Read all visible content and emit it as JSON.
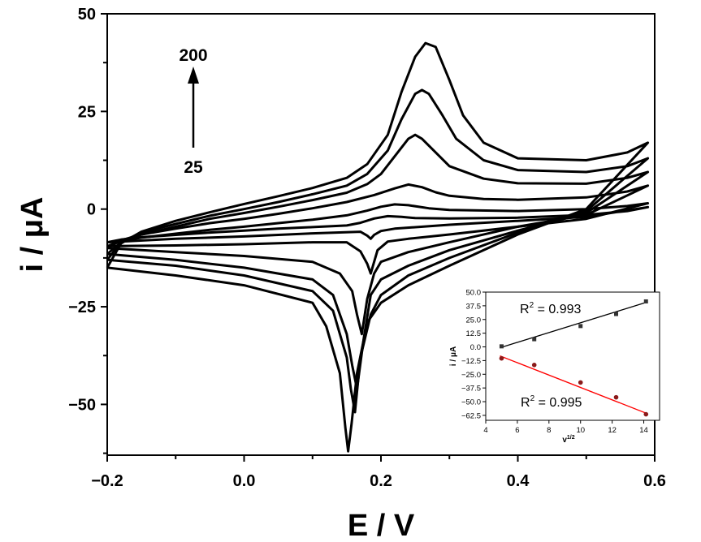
{
  "chart_data": [
    {
      "type": "line",
      "title": "",
      "xlabel": "E / V",
      "ylabel": "i / μA",
      "xlim": [
        -0.2,
        0.6
      ],
      "ylim": [
        -63,
        50
      ],
      "x_ticks": [
        "-0.2",
        "0.0",
        "0.2",
        "0.4",
        "0.6"
      ],
      "y_ticks": [
        "50",
        "25",
        "0",
        "-25",
        "-50"
      ],
      "grid": false,
      "legend": "none",
      "annotation": {
        "arrow_top_label": "200",
        "arrow_bottom_label": "25"
      },
      "series": [
        {
          "forward": [
            [
              -0.2,
              -8.5
            ],
            [
              -0.18,
              -7.8
            ],
            [
              -0.15,
              -7.2
            ],
            [
              -0.1,
              -6.6
            ],
            [
              -0.05,
              -6.0
            ],
            [
              0.0,
              -5.5
            ],
            [
              0.05,
              -5.0
            ],
            [
              0.1,
              -4.6
            ],
            [
              0.15,
              -4.2
            ],
            [
              0.17,
              -3.5
            ],
            [
              0.19,
              -2.4
            ],
            [
              0.21,
              -1.8
            ],
            [
              0.23,
              -2.0
            ],
            [
              0.25,
              -2.3
            ],
            [
              0.3,
              -2.4
            ],
            [
              0.4,
              -2.2
            ],
            [
              0.5,
              -1.5
            ],
            [
              0.56,
              -0.5
            ],
            [
              0.59,
              0.5
            ]
          ],
          "reverse": [
            [
              0.59,
              0.5
            ],
            [
              0.5,
              -2.0
            ],
            [
              0.4,
              -3.0
            ],
            [
              0.3,
              -4.0
            ],
            [
              0.22,
              -5.0
            ],
            [
              0.2,
              -5.6
            ],
            [
              0.19,
              -6.6
            ],
            [
              0.185,
              -7.6
            ],
            [
              0.18,
              -6.8
            ],
            [
              0.17,
              -5.8
            ],
            [
              0.1,
              -6.2
            ],
            [
              0.0,
              -7.0
            ],
            [
              -0.1,
              -7.6
            ],
            [
              -0.2,
              -8.5
            ]
          ]
        },
        {
          "forward": [
            [
              -0.2,
              -9.5
            ],
            [
              -0.18,
              -8.2
            ],
            [
              -0.15,
              -7.3
            ],
            [
              -0.1,
              -6.3
            ],
            [
              -0.05,
              -5.3
            ],
            [
              0.0,
              -4.5
            ],
            [
              0.05,
              -3.6
            ],
            [
              0.1,
              -2.7
            ],
            [
              0.15,
              -1.6
            ],
            [
              0.18,
              -0.4
            ],
            [
              0.2,
              0.6
            ],
            [
              0.22,
              1.2
            ],
            [
              0.24,
              1.0
            ],
            [
              0.27,
              0.2
            ],
            [
              0.3,
              -0.2
            ],
            [
              0.4,
              -0.5
            ],
            [
              0.5,
              0.0
            ],
            [
              0.56,
              0.8
            ],
            [
              0.59,
              1.5
            ]
          ],
          "reverse": [
            [
              0.59,
              1.5
            ],
            [
              0.5,
              -2.5
            ],
            [
              0.4,
              -4.5
            ],
            [
              0.3,
              -6.5
            ],
            [
              0.24,
              -7.6
            ],
            [
              0.21,
              -8.3
            ],
            [
              0.195,
              -10.5
            ],
            [
              0.19,
              -13.5
            ],
            [
              0.185,
              -16.5
            ],
            [
              0.18,
              -14.0
            ],
            [
              0.17,
              -10.8
            ],
            [
              0.15,
              -8.5
            ],
            [
              0.1,
              -8.5
            ],
            [
              0.0,
              -9.0
            ],
            [
              -0.1,
              -9.3
            ],
            [
              -0.2,
              -9.5
            ]
          ]
        },
        {
          "forward": [
            [
              -0.2,
              -10.0
            ],
            [
              -0.18,
              -8.0
            ],
            [
              -0.15,
              -6.5
            ],
            [
              -0.1,
              -5.0
            ],
            [
              -0.05,
              -3.6
            ],
            [
              0.0,
              -2.5
            ],
            [
              0.05,
              -1.2
            ],
            [
              0.1,
              0.2
            ],
            [
              0.15,
              1.8
            ],
            [
              0.19,
              3.6
            ],
            [
              0.22,
              5.3
            ],
            [
              0.24,
              6.3
            ],
            [
              0.26,
              5.6
            ],
            [
              0.28,
              4.3
            ],
            [
              0.3,
              3.4
            ],
            [
              0.35,
              2.6
            ],
            [
              0.4,
              2.4
            ],
            [
              0.5,
              3.0
            ],
            [
              0.56,
              4.5
            ],
            [
              0.59,
              6.0
            ]
          ],
          "reverse": [
            [
              0.59,
              6.0
            ],
            [
              0.5,
              -1.5
            ],
            [
              0.4,
              -4.5
            ],
            [
              0.3,
              -8.5
            ],
            [
              0.24,
              -11.0
            ],
            [
              0.2,
              -13.5
            ],
            [
              0.19,
              -16.5
            ],
            [
              0.18,
              -23.0
            ],
            [
              0.172,
              -32.0
            ],
            [
              0.165,
              -27.0
            ],
            [
              0.158,
              -21.0
            ],
            [
              0.14,
              -16.5
            ],
            [
              0.1,
              -13.5
            ],
            [
              0.0,
              -12.0
            ],
            [
              -0.1,
              -11.0
            ],
            [
              -0.2,
              -10.0
            ]
          ]
        },
        {
          "forward": [
            [
              -0.2,
              -11.5
            ],
            [
              -0.18,
              -8.5
            ],
            [
              -0.15,
              -6.5
            ],
            [
              -0.1,
              -4.5
            ],
            [
              -0.05,
              -2.5
            ],
            [
              0.0,
              -1.0
            ],
            [
              0.05,
              0.6
            ],
            [
              0.1,
              2.3
            ],
            [
              0.15,
              4.2
            ],
            [
              0.18,
              6.4
            ],
            [
              0.2,
              9.0
            ],
            [
              0.22,
              13.5
            ],
            [
              0.24,
              18.0
            ],
            [
              0.25,
              19.0
            ],
            [
              0.26,
              18.0
            ],
            [
              0.28,
              14.5
            ],
            [
              0.3,
              11.0
            ],
            [
              0.35,
              7.8
            ],
            [
              0.4,
              6.6
            ],
            [
              0.5,
              6.5
            ],
            [
              0.56,
              8.0
            ],
            [
              0.59,
              9.5
            ]
          ],
          "reverse": [
            [
              0.59,
              9.5
            ],
            [
              0.5,
              -1.0
            ],
            [
              0.4,
              -5.5
            ],
            [
              0.3,
              -10.5
            ],
            [
              0.24,
              -14.5
            ],
            [
              0.2,
              -18.0
            ],
            [
              0.185,
              -22.0
            ],
            [
              0.175,
              -33.0
            ],
            [
              0.165,
              -46.0
            ],
            [
              0.158,
              -40.0
            ],
            [
              0.15,
              -32.0
            ],
            [
              0.13,
              -22.0
            ],
            [
              0.1,
              -18.0
            ],
            [
              0.0,
              -15.0
            ],
            [
              -0.1,
              -13.0
            ],
            [
              -0.2,
              -11.5
            ]
          ]
        },
        {
          "forward": [
            [
              -0.2,
              -13.0
            ],
            [
              -0.18,
              -8.5
            ],
            [
              -0.15,
              -6.0
            ],
            [
              -0.1,
              -3.8
            ],
            [
              -0.05,
              -1.7
            ],
            [
              0.0,
              0.0
            ],
            [
              0.05,
              1.8
            ],
            [
              0.1,
              3.8
            ],
            [
              0.15,
              6.0
            ],
            [
              0.18,
              9.0
            ],
            [
              0.21,
              15.0
            ],
            [
              0.23,
              23.0
            ],
            [
              0.25,
              29.5
            ],
            [
              0.26,
              30.5
            ],
            [
              0.27,
              29.5
            ],
            [
              0.29,
              24.0
            ],
            [
              0.31,
              18.0
            ],
            [
              0.35,
              12.5
            ],
            [
              0.4,
              10.0
            ],
            [
              0.5,
              9.5
            ],
            [
              0.56,
              11.0
            ],
            [
              0.59,
              13.0
            ]
          ],
          "reverse": [
            [
              0.59,
              13.0
            ],
            [
              0.5,
              -0.5
            ],
            [
              0.4,
              -6.0
            ],
            [
              0.3,
              -12.5
            ],
            [
              0.24,
              -17.0
            ],
            [
              0.2,
              -22.0
            ],
            [
              0.185,
              -27.0
            ],
            [
              0.17,
              -38.0
            ],
            [
              0.162,
              -52.0
            ],
            [
              0.156,
              -46.0
            ],
            [
              0.15,
              -38.0
            ],
            [
              0.13,
              -26.0
            ],
            [
              0.1,
              -21.0
            ],
            [
              0.0,
              -17.0
            ],
            [
              -0.1,
              -14.5
            ],
            [
              -0.2,
              -13.0
            ]
          ]
        },
        {
          "forward": [
            [
              -0.2,
              -15.0
            ],
            [
              -0.18,
              -8.8
            ],
            [
              -0.15,
              -5.8
            ],
            [
              -0.1,
              -3.0
            ],
            [
              -0.05,
              -0.8
            ],
            [
              0.0,
              1.3
            ],
            [
              0.05,
              3.3
            ],
            [
              0.1,
              5.4
            ],
            [
              0.15,
              8.0
            ],
            [
              0.18,
              11.5
            ],
            [
              0.21,
              19.0
            ],
            [
              0.23,
              30.0
            ],
            [
              0.25,
              39.0
            ],
            [
              0.265,
              42.5
            ],
            [
              0.28,
              41.5
            ],
            [
              0.3,
              33.0
            ],
            [
              0.32,
              24.0
            ],
            [
              0.35,
              17.0
            ],
            [
              0.4,
              13.0
            ],
            [
              0.5,
              12.5
            ],
            [
              0.56,
              14.5
            ],
            [
              0.59,
              17.0
            ]
          ],
          "reverse": [
            [
              0.59,
              17.0
            ],
            [
              0.5,
              0.0
            ],
            [
              0.4,
              -6.5
            ],
            [
              0.3,
              -14.5
            ],
            [
              0.24,
              -19.5
            ],
            [
              0.2,
              -24.0
            ],
            [
              0.18,
              -29.0
            ],
            [
              0.165,
              -42.0
            ],
            [
              0.157,
              -55.0
            ],
            [
              0.152,
              -62.0
            ],
            [
              0.148,
              -56.0
            ],
            [
              0.14,
              -42.0
            ],
            [
              0.12,
              -30.0
            ],
            [
              0.1,
              -24.0
            ],
            [
              0.0,
              -19.5
            ],
            [
              -0.1,
              -17.0
            ],
            [
              -0.2,
              -15.0
            ]
          ]
        }
      ]
    },
    {
      "type": "scatter",
      "xlabel": "v",
      "xlabel_sup": "1/2",
      "ylabel": "i / μA",
      "xlim": [
        4,
        15
      ],
      "ylim": [
        -67,
        50
      ],
      "x_ticks": [
        "4",
        "6",
        "8",
        "10",
        "12",
        "14"
      ],
      "y_ticks": [
        "50.0",
        "37.5",
        "25.0",
        "12.5",
        "0.0",
        "-12.5",
        "-25.0",
        "-37.5",
        "-50.0",
        "-62.5"
      ],
      "series": [
        {
          "color": "#000000",
          "x": [
            5.0,
            7.07,
            10.0,
            12.25,
            14.14
          ],
          "y": [
            0.5,
            7.0,
            19.0,
            30.0,
            41.5
          ],
          "fit": [
            [
              4.9,
              -0.8
            ],
            [
              14.2,
              40.8
            ]
          ],
          "r2_label": "R",
          "r2_sup": "2",
          "r2_value": " = 0.993"
        },
        {
          "color": "#ff0000",
          "x": [
            5.0,
            7.07,
            10.0,
            12.25,
            14.14
          ],
          "y": [
            -10.5,
            -16.5,
            -32.5,
            -46.0,
            -61.5
          ],
          "fit": [
            [
              4.9,
              -8.2
            ],
            [
              14.2,
              -60.8
            ]
          ],
          "r2_label": "R",
          "r2_sup": "2",
          "r2_value": " = 0.995"
        }
      ]
    }
  ]
}
